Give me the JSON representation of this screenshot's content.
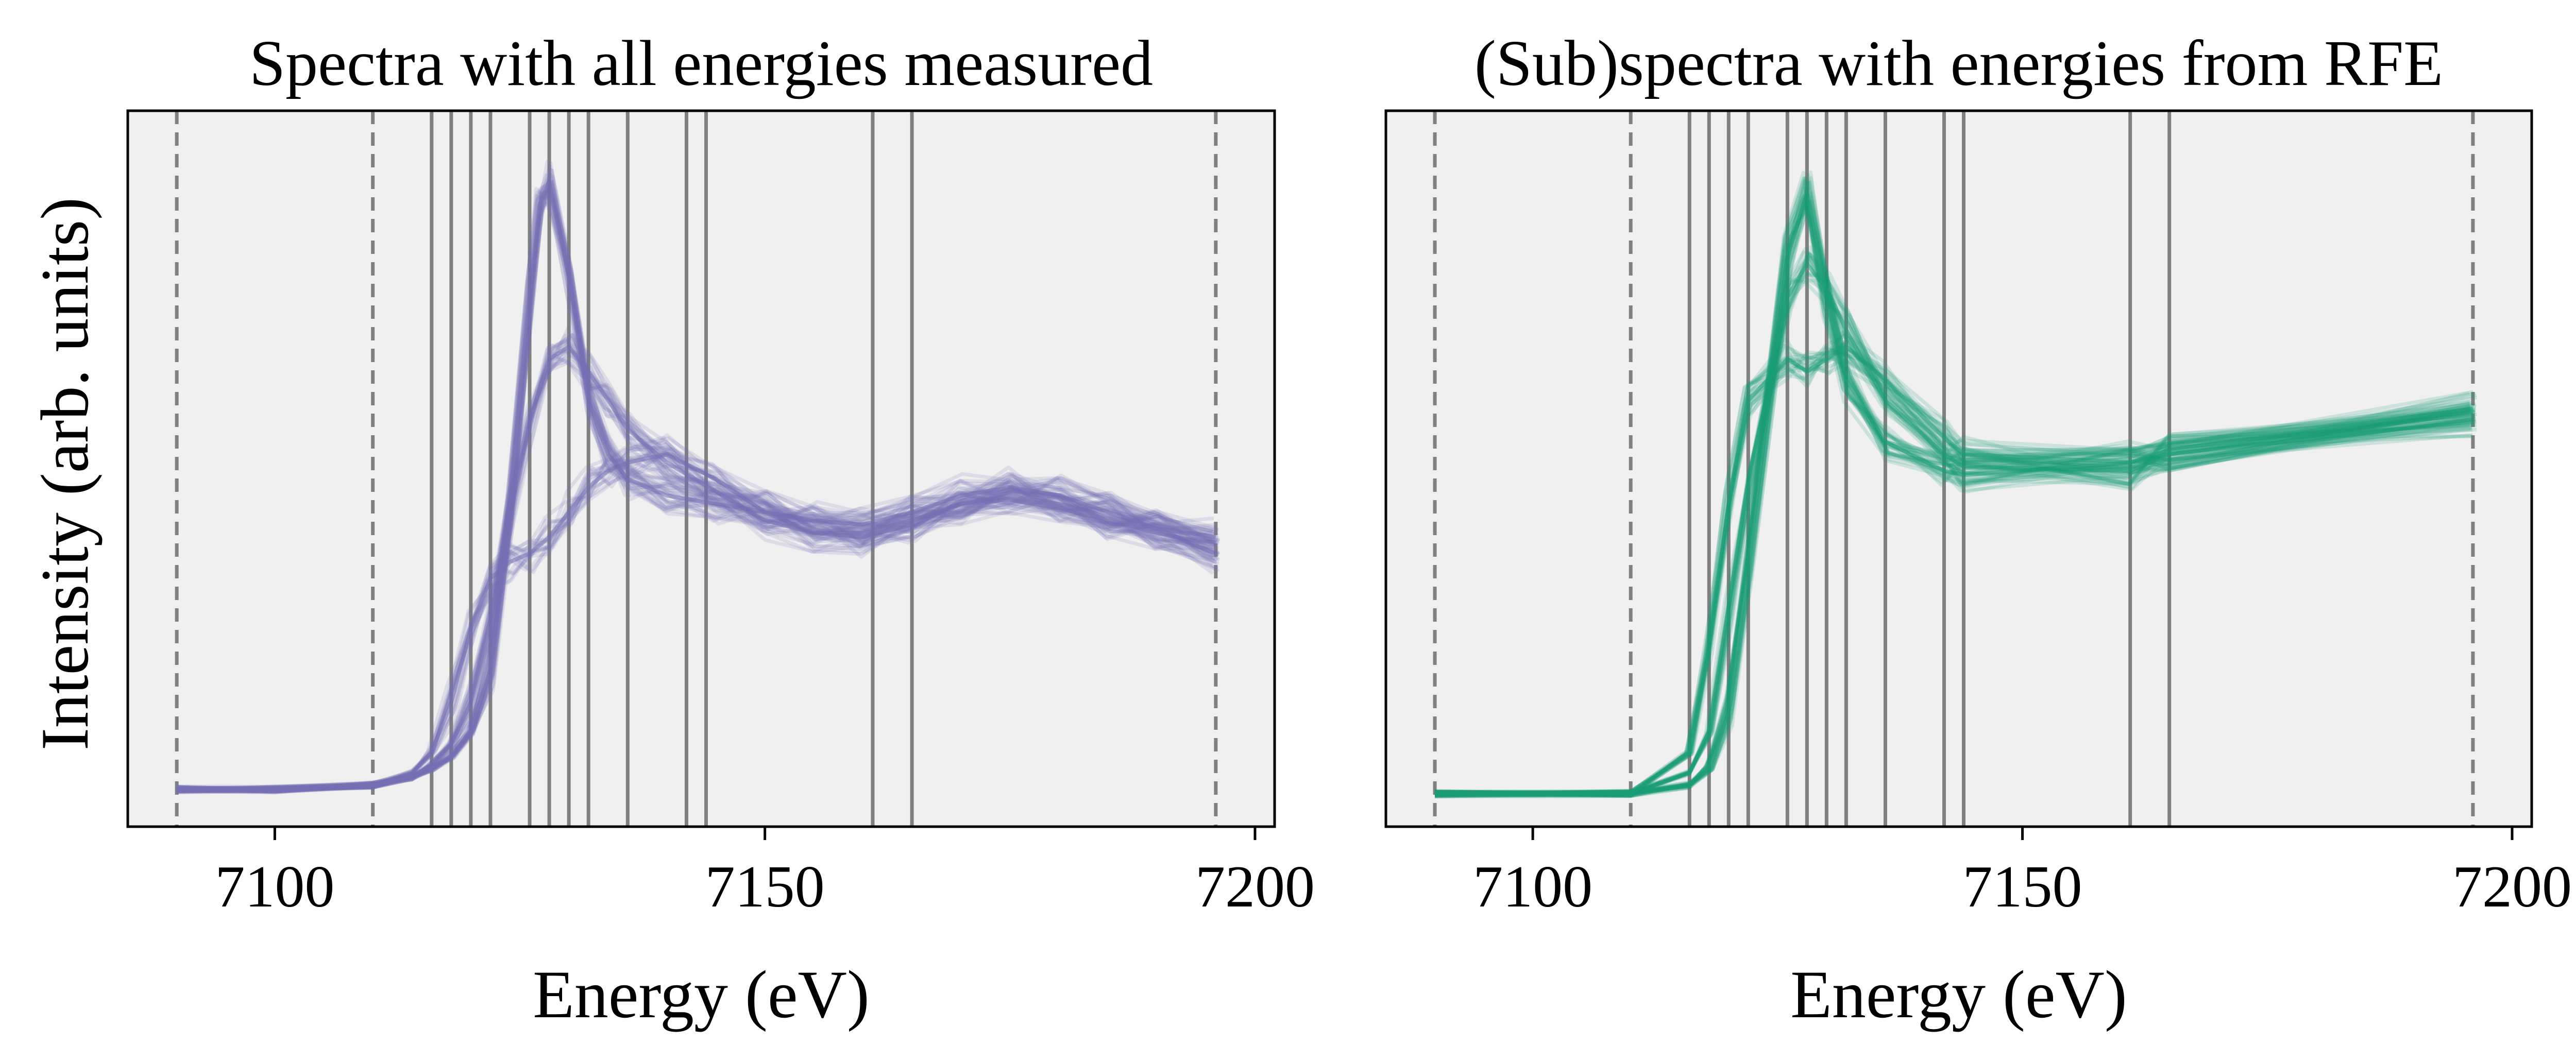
{
  "shared": {
    "ylabel": "Intensity (arb. units)",
    "xlabel": "Energy (eV)",
    "xticks": [
      7100,
      7150,
      7200
    ],
    "xlim": [
      7085,
      7202
    ],
    "ylim": [
      -0.08,
      1.65
    ],
    "plot_background": "#f0f0f0",
    "dashed_line_color": "#808080",
    "solid_line_color": "#808080"
  },
  "chart_data": [
    {
      "type": "line",
      "title": "Spectra with all energies measured",
      "xlabel": "Energy (eV)",
      "ylabel": "Intensity (arb. units)",
      "xlim": [
        7085,
        7202
      ],
      "xticks": [
        7100,
        7150,
        7200
      ],
      "ylim": [
        -0.08,
        1.65
      ],
      "color": "#7570b3",
      "dashed_lines_x": [
        7090,
        7110,
        7196
      ],
      "solid_lines_x": [
        7116,
        7118,
        7120,
        7122,
        7126,
        7128,
        7130,
        7132,
        7136,
        7142,
        7144,
        7161,
        7165
      ],
      "series_families": [
        {
          "x": [
            7090,
            7100,
            7110,
            7114,
            7116,
            7118,
            7120,
            7122,
            7124,
            7126,
            7127,
            7128,
            7130,
            7132,
            7134,
            7136,
            7140,
            7145,
            7150,
            7155,
            7160,
            7165,
            7170,
            7175,
            7180,
            7185,
            7190,
            7196
          ],
          "y": [
            0.01,
            0.01,
            0.02,
            0.04,
            0.06,
            0.09,
            0.15,
            0.3,
            0.7,
            1.2,
            1.42,
            1.48,
            1.25,
            0.95,
            0.82,
            0.76,
            0.72,
            0.7,
            0.68,
            0.66,
            0.65,
            0.68,
            0.72,
            0.74,
            0.72,
            0.68,
            0.64,
            0.58
          ]
        },
        {
          "x": [
            7090,
            7100,
            7110,
            7114,
            7116,
            7118,
            7120,
            7122,
            7124,
            7126,
            7128,
            7130,
            7132,
            7134,
            7136,
            7140,
            7145,
            7150,
            7155,
            7160,
            7165,
            7170,
            7175,
            7180,
            7185,
            7190,
            7196
          ],
          "y": [
            0.01,
            0.01,
            0.02,
            0.05,
            0.1,
            0.22,
            0.4,
            0.52,
            0.56,
            0.58,
            0.62,
            0.68,
            0.74,
            0.78,
            0.8,
            0.82,
            0.76,
            0.68,
            0.63,
            0.62,
            0.65,
            0.7,
            0.72,
            0.7,
            0.67,
            0.64,
            0.62
          ]
        },
        {
          "x": [
            7090,
            7100,
            7110,
            7114,
            7116,
            7118,
            7120,
            7122,
            7124,
            7126,
            7128,
            7130,
            7132,
            7134,
            7136,
            7140,
            7145,
            7150,
            7155,
            7160,
            7165,
            7170,
            7175,
            7180,
            7185,
            7190,
            7196
          ],
          "y": [
            0.01,
            0.01,
            0.02,
            0.04,
            0.07,
            0.12,
            0.22,
            0.42,
            0.68,
            0.9,
            1.05,
            1.08,
            1.02,
            0.95,
            0.88,
            0.8,
            0.73,
            0.66,
            0.63,
            0.63,
            0.66,
            0.7,
            0.71,
            0.69,
            0.66,
            0.63,
            0.6
          ]
        }
      ]
    },
    {
      "type": "line",
      "title": "(Sub)spectra with energies from RFE",
      "xlabel": "Energy (eV)",
      "xlim": [
        7085,
        7202
      ],
      "xticks": [
        7100,
        7150,
        7200
      ],
      "ylim": [
        -0.08,
        1.65
      ],
      "color": "#1b9e77",
      "dashed_lines_x": [
        7090,
        7110,
        7196
      ],
      "solid_lines_x": [
        7116,
        7118,
        7120,
        7122,
        7126,
        7128,
        7130,
        7132,
        7136,
        7142,
        7144,
        7161,
        7165
      ],
      "series_families": [
        {
          "x": [
            7090,
            7110,
            7116,
            7118,
            7120,
            7122,
            7126,
            7128,
            7130,
            7132,
            7136,
            7142,
            7144,
            7161,
            7165,
            7196
          ],
          "y": [
            0.0,
            0.0,
            0.02,
            0.06,
            0.2,
            0.55,
            1.3,
            1.45,
            1.2,
            1.0,
            0.85,
            0.78,
            0.77,
            0.8,
            0.82,
            0.92
          ]
        },
        {
          "x": [
            7090,
            7110,
            7116,
            7118,
            7120,
            7122,
            7126,
            7128,
            7130,
            7132,
            7136,
            7142,
            7144,
            7161,
            7165,
            7196
          ],
          "y": [
            0.0,
            0.0,
            0.05,
            0.15,
            0.45,
            0.75,
            1.2,
            1.28,
            1.22,
            1.12,
            0.95,
            0.82,
            0.79,
            0.78,
            0.82,
            0.9
          ]
        },
        {
          "x": [
            7090,
            7110,
            7116,
            7118,
            7120,
            7122,
            7126,
            7128,
            7130,
            7132,
            7136,
            7142,
            7144,
            7161,
            7165,
            7196
          ],
          "y": [
            0.0,
            0.0,
            0.1,
            0.35,
            0.7,
            0.95,
            1.05,
            1.02,
            1.05,
            1.08,
            1.0,
            0.86,
            0.82,
            0.8,
            0.83,
            0.93
          ]
        }
      ]
    }
  ]
}
